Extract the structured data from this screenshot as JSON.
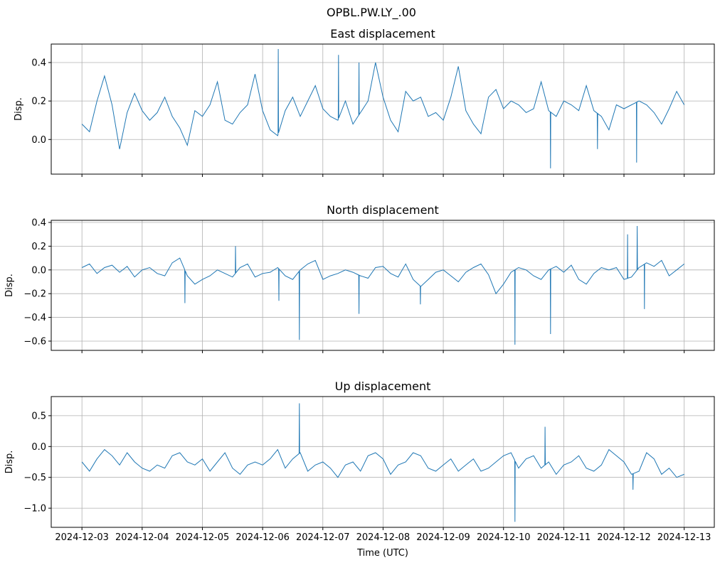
{
  "chart_data": {
    "type": "line",
    "suptitle": "OPBL.PW.LY_.00",
    "xlabel": "Time (UTC)",
    "x_units": "days since 2024-12-03 00:00 UTC",
    "xlim": [
      -0.51,
      10.5
    ],
    "x_tick_values": [
      0,
      1,
      2,
      3,
      4,
      5,
      6,
      7,
      8,
      9,
      10
    ],
    "x_tick_labels": [
      "2024-12-03",
      "2024-12-04",
      "2024-12-05",
      "2024-12-06",
      "2024-12-07",
      "2024-12-08",
      "2024-12-09",
      "2024-12-10",
      "2024-12-11",
      "2024-12-12",
      "2024-12-13"
    ],
    "grid": true,
    "color": "#1f77b4",
    "panels": [
      {
        "title": "East displacement",
        "ylabel": "Disp.",
        "ylim": [
          -0.18,
          0.496
        ],
        "y_ticks": [
          0.0,
          0.2,
          0.4
        ],
        "y_tick_labels": [
          "0.0",
          "0.2",
          "0.4"
        ],
        "t0": 0,
        "dt": 0.125,
        "values": [
          0.08,
          0.04,
          0.2,
          0.33,
          0.18,
          -0.05,
          0.14,
          0.24,
          0.15,
          0.1,
          0.14,
          0.22,
          0.12,
          0.06,
          -0.03,
          0.15,
          0.12,
          0.18,
          0.3,
          0.1,
          0.08,
          0.14,
          0.18,
          0.34,
          0.15,
          0.05,
          0.02,
          0.15,
          0.22,
          0.12,
          0.2,
          0.28,
          0.16,
          0.12,
          0.1,
          0.2,
          0.08,
          0.14,
          0.2,
          0.4,
          0.22,
          0.1,
          0.04,
          0.25,
          0.2,
          0.22,
          0.12,
          0.14,
          0.1,
          0.22,
          0.38,
          0.15,
          0.08,
          0.03,
          0.22,
          0.26,
          0.16,
          0.2,
          0.18,
          0.14,
          0.16,
          0.3,
          0.15,
          0.12,
          0.2,
          0.18,
          0.15,
          0.28,
          0.15,
          0.12,
          0.05,
          0.18,
          0.16,
          0.18,
          0.2,
          0.18,
          0.14,
          0.08,
          0.16,
          0.25,
          0.18
        ],
        "spikes": [
          [
            3.26,
            0.47
          ],
          [
            4.26,
            0.44
          ],
          [
            4.6,
            0.4
          ],
          [
            7.78,
            -0.15
          ],
          [
            8.56,
            -0.05
          ],
          [
            9.21,
            -0.12
          ]
        ]
      },
      {
        "title": "North displacement",
        "ylabel": "Disp.",
        "ylim": [
          -0.678,
          0.418
        ],
        "y_ticks": [
          -0.6,
          -0.4,
          -0.2,
          0.0,
          0.2,
          0.4
        ],
        "y_tick_labels": [
          "−0.6",
          "−0.4",
          "−0.2",
          "0.0",
          "0.2",
          "0.4"
        ],
        "t0": 0,
        "dt": 0.125,
        "values": [
          0.02,
          0.05,
          -0.03,
          0.02,
          0.04,
          -0.02,
          0.03,
          -0.06,
          0.0,
          0.02,
          -0.03,
          -0.05,
          0.06,
          0.1,
          -0.05,
          -0.12,
          -0.08,
          -0.05,
          0.0,
          -0.03,
          -0.06,
          0.02,
          0.05,
          -0.06,
          -0.03,
          -0.02,
          0.02,
          -0.05,
          -0.08,
          0.0,
          0.05,
          0.08,
          -0.08,
          -0.05,
          -0.03,
          0.0,
          -0.02,
          -0.05,
          -0.07,
          0.02,
          0.03,
          -0.03,
          -0.06,
          0.05,
          -0.08,
          -0.14,
          -0.08,
          -0.02,
          0.0,
          -0.05,
          -0.1,
          -0.02,
          0.02,
          0.05,
          -0.04,
          -0.2,
          -0.12,
          -0.02,
          0.02,
          0.0,
          -0.05,
          -0.08,
          0.0,
          0.03,
          -0.02,
          0.04,
          -0.08,
          -0.12,
          -0.03,
          0.02,
          0.0,
          0.02,
          -0.08,
          -0.06,
          0.02,
          0.06,
          0.03,
          0.08,
          -0.05,
          0.0,
          0.05
        ],
        "spikes": [
          [
            1.71,
            -0.28
          ],
          [
            2.55,
            0.2
          ],
          [
            3.27,
            -0.26
          ],
          [
            3.61,
            -0.59
          ],
          [
            4.6,
            -0.37
          ],
          [
            5.62,
            -0.29
          ],
          [
            7.19,
            -0.63
          ],
          [
            7.78,
            -0.54
          ],
          [
            9.06,
            0.3
          ],
          [
            9.22,
            0.37
          ],
          [
            9.34,
            -0.33
          ]
        ]
      },
      {
        "title": "Up displacement",
        "ylabel": "Disp.",
        "ylim": [
          -1.31,
          0.81
        ],
        "y_ticks": [
          -1.0,
          -0.5,
          0.0,
          0.5
        ],
        "y_tick_labels": [
          "−1.0",
          "−0.5",
          "0.0",
          "0.5"
        ],
        "t0": 0,
        "dt": 0.125,
        "values": [
          -0.25,
          -0.4,
          -0.2,
          -0.05,
          -0.15,
          -0.3,
          -0.1,
          -0.25,
          -0.35,
          -0.4,
          -0.3,
          -0.35,
          -0.15,
          -0.1,
          -0.25,
          -0.3,
          -0.2,
          -0.4,
          -0.25,
          -0.1,
          -0.35,
          -0.45,
          -0.3,
          -0.25,
          -0.3,
          -0.2,
          -0.05,
          -0.35,
          -0.2,
          -0.1,
          -0.4,
          -0.3,
          -0.25,
          -0.35,
          -0.5,
          -0.3,
          -0.25,
          -0.4,
          -0.15,
          -0.1,
          -0.2,
          -0.45,
          -0.3,
          -0.25,
          -0.1,
          -0.15,
          -0.35,
          -0.4,
          -0.3,
          -0.2,
          -0.4,
          -0.3,
          -0.2,
          -0.4,
          -0.35,
          -0.25,
          -0.15,
          -0.1,
          -0.35,
          -0.2,
          -0.15,
          -0.35,
          -0.25,
          -0.45,
          -0.3,
          -0.25,
          -0.15,
          -0.35,
          -0.4,
          -0.3,
          -0.05,
          -0.15,
          -0.25,
          -0.45,
          -0.4,
          -0.1,
          -0.2,
          -0.45,
          -0.35,
          -0.5,
          -0.45
        ],
        "spikes": [
          [
            3.61,
            0.7
          ],
          [
            7.19,
            -1.22
          ],
          [
            7.69,
            0.32
          ],
          [
            9.15,
            -0.7
          ]
        ]
      }
    ]
  }
}
